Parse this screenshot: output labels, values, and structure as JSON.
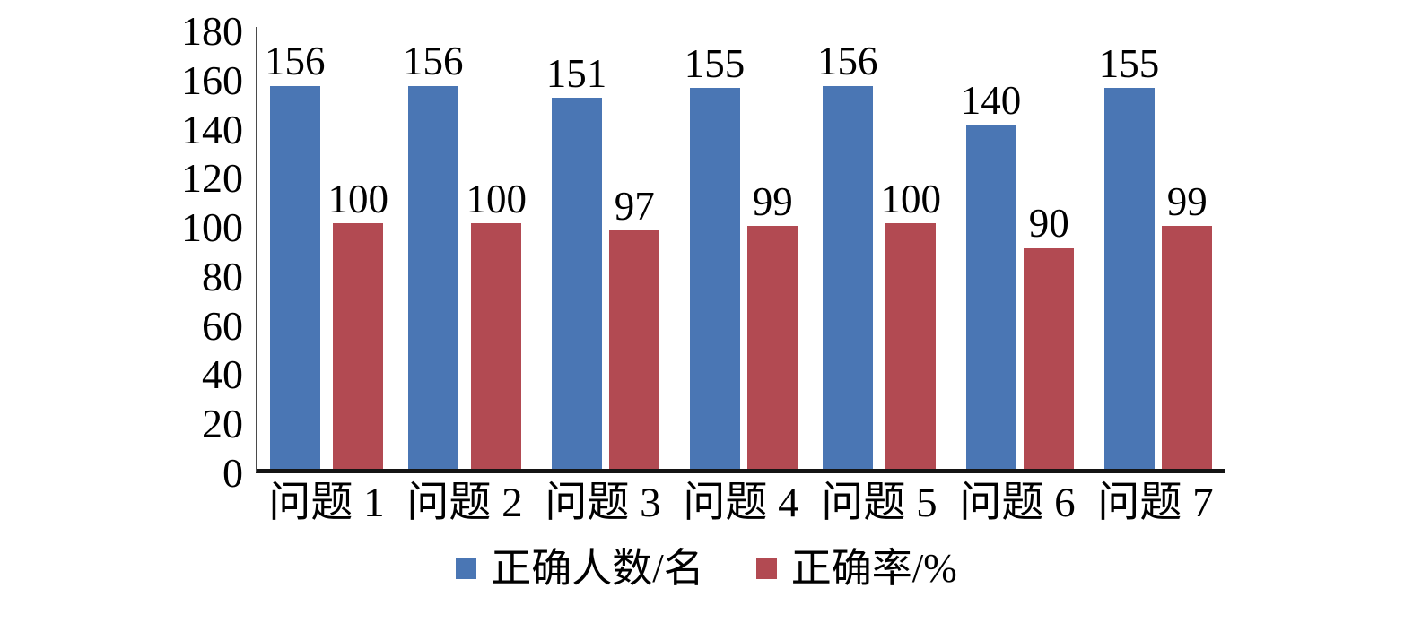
{
  "chart_data": {
    "type": "bar",
    "categories": [
      "问题 1",
      "问题 2",
      "问题 3",
      "问题 4",
      "问题 5",
      "问题 6",
      "问题 7"
    ],
    "series": [
      {
        "name": "正确人数/名",
        "color": "#4a76b4",
        "values": [
          156,
          156,
          151,
          155,
          156,
          140,
          155
        ]
      },
      {
        "name": "正确率/%",
        "color": "#b24a52",
        "values": [
          100,
          100,
          97,
          99,
          100,
          90,
          99
        ]
      }
    ],
    "title": "",
    "xlabel": "",
    "ylabel": "",
    "ylim": [
      0,
      180
    ],
    "ytick_step": 20,
    "grid": false,
    "legend_position": "bottom",
    "data_labels": true,
    "background": "#ffffff"
  }
}
